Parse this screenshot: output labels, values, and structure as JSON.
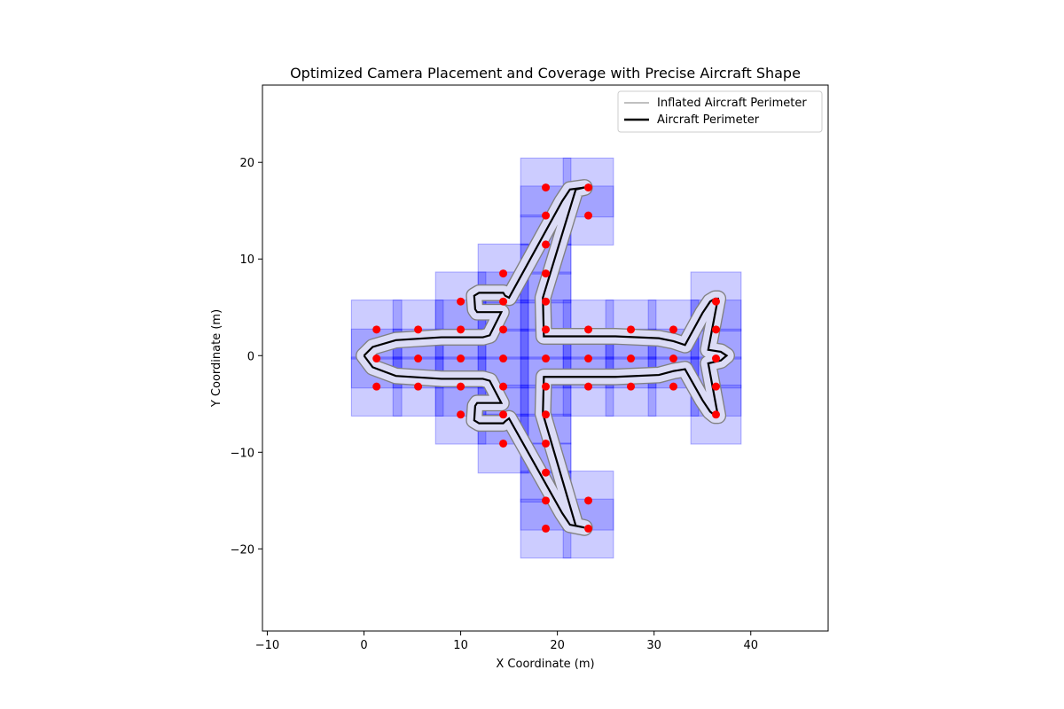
{
  "chart_data": {
    "type": "scatter",
    "title": "Optimized Camera Placement and Coverage with Precise Aircraft Shape",
    "xlabel": "X Coordinate (m)",
    "ylabel": "Y Coordinate (m)",
    "xlim": [
      -10.5,
      48
    ],
    "ylim": [
      -28.5,
      28
    ],
    "xticks": [
      -10,
      0,
      10,
      20,
      30,
      40
    ],
    "yticks": [
      -20,
      -10,
      0,
      10,
      20
    ],
    "xtick_labels": [
      "−10",
      "0",
      "10",
      "20",
      "30",
      "40"
    ],
    "ytick_labels": [
      "−20",
      "−10",
      "0",
      "10",
      "20"
    ],
    "grid": false,
    "legend": {
      "placement": "top-right",
      "entries": [
        {
          "label": "Inflated Aircraft Perimeter",
          "color": "#808080"
        },
        {
          "label": "Aircraft Perimeter",
          "color": "#000000"
        }
      ]
    },
    "coverage_color": "#0000ff",
    "camera_color": "#ff0000",
    "coverage_half_width": 2.6,
    "coverage_half_height": 3.05,
    "cameras": [
      [
        1.3,
        2.7
      ],
      [
        5.6,
        2.7
      ],
      [
        10.0,
        2.7
      ],
      [
        14.4,
        2.7
      ],
      [
        18.8,
        2.7
      ],
      [
        23.2,
        2.7
      ],
      [
        27.6,
        2.7
      ],
      [
        32.0,
        2.7
      ],
      [
        36.4,
        2.7
      ],
      [
        1.3,
        -0.3
      ],
      [
        5.6,
        -0.3
      ],
      [
        10.0,
        -0.3
      ],
      [
        14.4,
        -0.3
      ],
      [
        18.8,
        -0.3
      ],
      [
        23.2,
        -0.3
      ],
      [
        27.6,
        -0.3
      ],
      [
        32.0,
        -0.3
      ],
      [
        36.4,
        -0.3
      ],
      [
        1.3,
        -3.2
      ],
      [
        5.6,
        -3.2
      ],
      [
        10.0,
        -3.2
      ],
      [
        14.4,
        -3.2
      ],
      [
        18.8,
        -3.2
      ],
      [
        23.2,
        -3.2
      ],
      [
        27.6,
        -3.2
      ],
      [
        32.0,
        -3.2
      ],
      [
        36.4,
        -3.2
      ],
      [
        10.0,
        5.6
      ],
      [
        14.4,
        5.6
      ],
      [
        18.8,
        5.6
      ],
      [
        36.4,
        5.6
      ],
      [
        14.4,
        8.5
      ],
      [
        18.8,
        8.5
      ],
      [
        18.8,
        11.5
      ],
      [
        18.8,
        14.5
      ],
      [
        23.2,
        14.5
      ],
      [
        18.8,
        17.4
      ],
      [
        23.2,
        17.4
      ],
      [
        10.0,
        -6.1
      ],
      [
        14.4,
        -6.1
      ],
      [
        18.8,
        -6.1
      ],
      [
        36.4,
        -6.1
      ],
      [
        14.4,
        -9.1
      ],
      [
        18.8,
        -9.1
      ],
      [
        18.8,
        -12.1
      ],
      [
        18.8,
        -15.0
      ],
      [
        23.2,
        -15.0
      ],
      [
        18.8,
        -17.9
      ],
      [
        23.2,
        -17.9
      ]
    ],
    "aircraft_perimeter": [
      [
        0,
        0
      ],
      [
        0.9,
        0.9
      ],
      [
        3.3,
        1.6
      ],
      [
        8.0,
        1.9
      ],
      [
        12.3,
        1.9
      ],
      [
        13.0,
        2.1
      ],
      [
        14.2,
        4.5
      ],
      [
        11.7,
        4.5
      ],
      [
        11.5,
        4.8
      ],
      [
        11.4,
        6.2
      ],
      [
        11.9,
        6.5
      ],
      [
        14.4,
        6.5
      ],
      [
        14.6,
        6.2
      ],
      [
        15.0,
        6.0
      ],
      [
        20.5,
        16.0
      ],
      [
        21.3,
        17.2
      ],
      [
        22.8,
        17.4
      ],
      [
        21.9,
        17.2
      ],
      [
        18.5,
        6.0
      ],
      [
        18.6,
        2.0
      ],
      [
        26.0,
        2.0
      ],
      [
        30.5,
        1.8
      ],
      [
        32.0,
        1.5
      ],
      [
        33.2,
        1.1
      ],
      [
        35.0,
        4.4
      ],
      [
        35.8,
        5.6
      ],
      [
        36.3,
        5.9
      ],
      [
        36.6,
        5.9
      ],
      [
        35.6,
        0.6
      ],
      [
        36.9,
        0.4
      ],
      [
        37.5,
        0
      ],
      [
        36.9,
        -0.5
      ],
      [
        35.6,
        -0.8
      ],
      [
        36.6,
        -6.2
      ],
      [
        36.3,
        -6.2
      ],
      [
        35.8,
        -5.8
      ],
      [
        35.0,
        -4.6
      ],
      [
        33.2,
        -1.4
      ],
      [
        32.0,
        -1.6
      ],
      [
        30.5,
        -2.0
      ],
      [
        26.0,
        -2.2
      ],
      [
        18.6,
        -2.2
      ],
      [
        18.5,
        -6.0
      ],
      [
        21.9,
        -17.6
      ],
      [
        22.8,
        -17.8
      ],
      [
        21.3,
        -17.5
      ],
      [
        20.5,
        -16.3
      ],
      [
        15.0,
        -6.5
      ],
      [
        14.6,
        -6.8
      ],
      [
        14.4,
        -7.0
      ],
      [
        11.9,
        -7.0
      ],
      [
        11.4,
        -6.7
      ],
      [
        11.5,
        -5.2
      ],
      [
        11.7,
        -4.9
      ],
      [
        14.2,
        -4.9
      ],
      [
        13.0,
        -2.6
      ],
      [
        12.3,
        -2.4
      ],
      [
        8.0,
        -2.4
      ],
      [
        3.3,
        -2.1
      ],
      [
        0.9,
        -1.2
      ],
      [
        0,
        0
      ]
    ],
    "inflated_offset": 0.8
  }
}
